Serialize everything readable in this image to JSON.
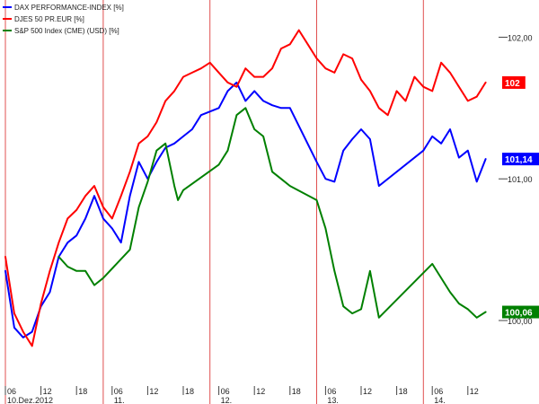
{
  "chart_data": {
    "type": "line",
    "title": "",
    "xlabel": "",
    "ylabel": "",
    "xlim": [
      0,
      37
    ],
    "ylim": [
      99.55,
      102.25
    ],
    "grid": false,
    "legend_position": "top-left",
    "y_ticks": [
      {
        "value": 102.0,
        "label": "102,00"
      },
      {
        "value": 101.0,
        "label": "101,00"
      },
      {
        "value": 100.0,
        "label": "100,00"
      }
    ],
    "x_ticks": [
      {
        "x": 0.0,
        "label": "06",
        "date_label": "10.Dez.2012"
      },
      {
        "x": 2.0,
        "label": "12"
      },
      {
        "x": 4.0,
        "label": "18"
      },
      {
        "x": 6.0,
        "label": "06",
        "date_label": "11."
      },
      {
        "x": 8.0,
        "label": "12"
      },
      {
        "x": 10.0,
        "label": "18"
      },
      {
        "x": 12.0,
        "label": "06",
        "date_label": "12."
      },
      {
        "x": 14.0,
        "label": "12"
      },
      {
        "x": 16.0,
        "label": "18"
      },
      {
        "x": 18.0,
        "label": "06",
        "date_label": "13."
      },
      {
        "x": 20.0,
        "label": "12"
      },
      {
        "x": 22.0,
        "label": "18"
      },
      {
        "x": 24.0,
        "label": "06",
        "date_label": "14."
      },
      {
        "x": 26.0,
        "label": "12"
      }
    ],
    "day_separators": [
      0.0,
      5.5,
      11.5,
      17.5,
      23.5
    ],
    "series": [
      {
        "name": "DAX PERFORMANCE-INDEX",
        "unit": "[%]",
        "color": "#0000ff",
        "last_label": "101,14",
        "x": [
          0.0,
          0.5,
          1.0,
          1.5,
          2.0,
          2.5,
          3.0,
          3.5,
          4.0,
          4.5,
          5.0,
          5.5,
          6.0,
          6.5,
          7.0,
          7.5,
          8.0,
          8.5,
          9.0,
          9.5,
          10.0,
          10.5,
          11.0,
          12.0,
          12.5,
          13.0,
          13.5,
          14.0,
          14.5,
          15.0,
          15.5,
          16.0,
          17.5,
          18.0,
          18.5,
          19.0,
          19.5,
          20.0,
          20.5,
          21.0,
          23.5,
          24.0,
          24.5,
          25.0,
          25.5,
          26.0,
          26.5,
          27.0
        ],
        "y": [
          100.35,
          99.95,
          99.88,
          99.92,
          100.1,
          100.2,
          100.45,
          100.55,
          100.6,
          100.72,
          100.88,
          100.72,
          100.65,
          100.55,
          100.88,
          101.12,
          101.0,
          101.12,
          101.22,
          101.25,
          101.3,
          101.35,
          101.45,
          101.5,
          101.62,
          101.68,
          101.55,
          101.62,
          101.55,
          101.52,
          101.5,
          101.5,
          101.12,
          101.0,
          100.98,
          101.2,
          101.28,
          101.35,
          101.28,
          100.95,
          101.2,
          101.3,
          101.25,
          101.35,
          101.15,
          101.2,
          100.98,
          101.14
        ]
      },
      {
        "name": "DJES 50 PR.EUR",
        "unit": "[%]",
        "color": "#ff0000",
        "last_label": "102",
        "x": [
          0.0,
          0.5,
          1.0,
          1.5,
          2.0,
          2.5,
          3.0,
          3.5,
          4.0,
          4.5,
          5.0,
          5.5,
          6.0,
          6.5,
          7.0,
          7.5,
          8.0,
          8.5,
          9.0,
          9.5,
          10.0,
          10.5,
          11.0,
          11.5,
          12.0,
          12.5,
          13.0,
          13.5,
          14.0,
          14.5,
          15.0,
          15.5,
          16.0,
          16.5,
          17.0,
          17.5,
          18.0,
          18.5,
          19.0,
          19.5,
          20.0,
          20.5,
          21.0,
          21.5,
          22.0,
          22.5,
          23.0,
          23.5,
          24.0,
          24.5,
          25.0,
          25.5,
          26.0,
          26.5,
          27.0
        ],
        "y": [
          100.45,
          100.05,
          99.92,
          99.82,
          100.12,
          100.35,
          100.55,
          100.72,
          100.78,
          100.88,
          100.95,
          100.8,
          100.72,
          100.88,
          101.05,
          101.25,
          101.3,
          101.4,
          101.55,
          101.62,
          101.72,
          101.75,
          101.78,
          101.82,
          101.75,
          101.68,
          101.65,
          101.78,
          101.72,
          101.72,
          101.78,
          101.92,
          101.95,
          102.05,
          101.95,
          101.85,
          101.78,
          101.75,
          101.88,
          101.85,
          101.7,
          101.62,
          101.5,
          101.45,
          101.62,
          101.55,
          101.72,
          101.65,
          101.62,
          101.82,
          101.75,
          101.65,
          101.55,
          101.58,
          101.68
        ]
      },
      {
        "name": "S&P 500 Index (CME) (USD)",
        "unit": "[%]",
        "color": "#008000",
        "last_label": "100,06",
        "x": [
          3.0,
          3.5,
          4.0,
          4.5,
          5.0,
          5.5,
          7.0,
          7.5,
          8.0,
          8.5,
          9.0,
          9.5,
          9.7,
          10.0,
          12.0,
          12.5,
          13.0,
          13.5,
          14.0,
          14.5,
          15.0,
          15.5,
          16.0,
          17.5,
          18.0,
          18.5,
          19.0,
          19.5,
          20.0,
          20.5,
          21.0,
          24.0,
          25.0,
          25.5,
          26.0,
          26.5,
          27.0
        ],
        "y": [
          100.45,
          100.38,
          100.35,
          100.35,
          100.25,
          100.3,
          100.5,
          100.8,
          100.98,
          101.2,
          101.25,
          100.95,
          100.85,
          100.92,
          101.1,
          101.2,
          101.45,
          101.5,
          101.35,
          101.3,
          101.05,
          101.0,
          100.95,
          100.85,
          100.65,
          100.35,
          100.1,
          100.05,
          100.08,
          100.35,
          100.02,
          100.4,
          100.2,
          100.12,
          100.08,
          100.02,
          100.06
        ]
      }
    ]
  }
}
